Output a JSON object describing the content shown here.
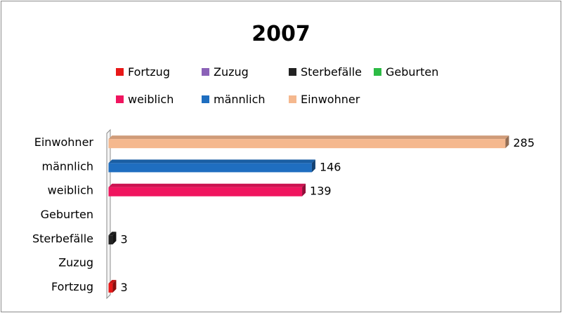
{
  "chart_data": {
    "type": "bar",
    "orientation": "horizontal",
    "style": "3d",
    "title": "2007",
    "categories": [
      "Einwohner",
      "männlich",
      "weiblich",
      "Geburten",
      "Sterbefälle",
      "Zuzug",
      "Fortzug"
    ],
    "values": [
      285,
      146,
      139,
      0,
      3,
      0,
      3
    ],
    "data_labels": [
      "285",
      "146",
      "139",
      "",
      "3",
      "",
      "3"
    ],
    "colors": [
      "#f5b88e",
      "#1f6ec0",
      "#f0155f",
      "#2dbb45",
      "#222222",
      "#8b62b8",
      "#e81818"
    ],
    "xlim": [
      0,
      290
    ],
    "grid": false,
    "legend": {
      "placement": "top",
      "rows": [
        [
          {
            "label": "Fortzug",
            "color": "#e81818"
          },
          {
            "label": "Zuzug",
            "color": "#8b62b8"
          },
          {
            "label": "Sterbefälle",
            "color": "#222222"
          },
          {
            "label": "Geburten",
            "color": "#2dbb45"
          }
        ],
        [
          {
            "label": "weiblich",
            "color": "#f0155f"
          },
          {
            "label": "männlich",
            "color": "#1f6ec0"
          },
          {
            "label": "Einwohner",
            "color": "#f5b88e"
          }
        ]
      ]
    }
  }
}
